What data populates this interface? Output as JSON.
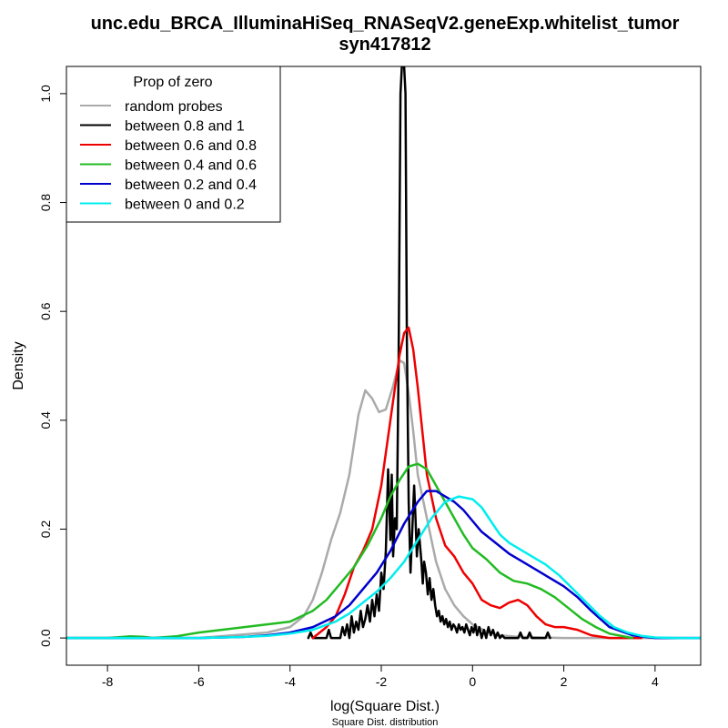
{
  "chart_data": {
    "type": "line",
    "title": "unc.edu_BRCA_IlluminaHiSeq_RNASeqV2.geneExp.whitelist_tumor",
    "subtitle": "syn417812",
    "xlabel": "log(Square Dist.)",
    "xsublabel": "Square Dist. distribution",
    "ylabel": "Density",
    "xlim": [
      -8.9,
      5.0
    ],
    "ylim": [
      -0.05,
      1.05
    ],
    "xticks": [
      -8,
      -6,
      -4,
      -2,
      0,
      2,
      4
    ],
    "xtick_labels": [
      "-8",
      "-6",
      "-4",
      "-2",
      "0",
      "2",
      "4"
    ],
    "yticks": [
      0.0,
      0.2,
      0.4,
      0.6,
      0.8,
      1.0
    ],
    "ytick_labels": [
      "0.0",
      "0.2",
      "0.4",
      "0.6",
      "0.8",
      "1.0"
    ],
    "grid": false,
    "legend": {
      "title": "Prop of zero",
      "placement": "top-left"
    },
    "series": [
      {
        "name": "random probes",
        "color": "#aaaaaa",
        "x": [
          -8.9,
          -6,
          -4.5,
          -4,
          -3.7,
          -3.5,
          -3.3,
          -3.1,
          -2.9,
          -2.7,
          -2.5,
          -2.35,
          -2.2,
          -2.05,
          -1.9,
          -1.75,
          -1.6,
          -1.5,
          -1.4,
          -1.3,
          -1.2,
          -1.0,
          -0.8,
          -0.6,
          -0.4,
          -0.2,
          0.0,
          0.3,
          0.6,
          1.0,
          2.0,
          5.0
        ],
        "y": [
          0.0,
          0.0,
          0.01,
          0.02,
          0.04,
          0.07,
          0.12,
          0.18,
          0.23,
          0.3,
          0.41,
          0.455,
          0.44,
          0.415,
          0.42,
          0.46,
          0.51,
          0.505,
          0.45,
          0.38,
          0.3,
          0.22,
          0.14,
          0.09,
          0.06,
          0.04,
          0.025,
          0.012,
          0.005,
          0.002,
          0.0,
          0.0
        ]
      },
      {
        "name": "between 0.8 and 1",
        "color": "#000000",
        "x": [
          -3.6,
          -3.55,
          -3.5,
          -3.45,
          -3.2,
          -3.15,
          -3.1,
          -3.05,
          -2.9,
          -2.85,
          -2.8,
          -2.75,
          -2.7,
          -2.65,
          -2.6,
          -2.55,
          -2.5,
          -2.45,
          -2.4,
          -2.35,
          -2.3,
          -2.25,
          -2.2,
          -2.15,
          -2.1,
          -2.05,
          -2.0,
          -1.95,
          -1.9,
          -1.85,
          -1.8,
          -1.77,
          -1.74,
          -1.7,
          -1.66,
          -1.62,
          -1.58,
          -1.55,
          -1.5,
          -1.47,
          -1.44,
          -1.4,
          -1.36,
          -1.32,
          -1.28,
          -1.25,
          -1.22,
          -1.18,
          -1.15,
          -1.12,
          -1.09,
          -1.06,
          -1.02,
          -0.98,
          -0.94,
          -0.9,
          -0.86,
          -0.82,
          -0.78,
          -0.74,
          -0.7,
          -0.66,
          -0.62,
          -0.58,
          -0.54,
          -0.5,
          -0.46,
          -0.42,
          -0.38,
          -0.34,
          -0.3,
          -0.26,
          -0.22,
          -0.18,
          -0.14,
          -0.1,
          -0.06,
          -0.02,
          0.02,
          0.06,
          0.1,
          0.15,
          0.2,
          0.25,
          0.3,
          0.35,
          0.4,
          0.45,
          0.5,
          0.55,
          0.6,
          0.65,
          0.7,
          0.8,
          0.9,
          1.0,
          1.05,
          1.1,
          1.2,
          1.25,
          1.3,
          1.35,
          1.5,
          1.6,
          1.65,
          1.7
        ],
        "y": [
          0.0,
          0.01,
          0.0,
          0.0,
          0.0,
          0.015,
          0.0,
          0.0,
          0.0,
          0.02,
          0.005,
          0.025,
          0.0,
          0.04,
          0.01,
          0.03,
          0.015,
          0.05,
          0.02,
          0.035,
          0.06,
          0.03,
          0.07,
          0.04,
          0.08,
          0.05,
          0.12,
          0.09,
          0.16,
          0.31,
          0.18,
          0.3,
          0.15,
          0.22,
          0.2,
          0.5,
          1.0,
          1.05,
          1.05,
          1.0,
          0.55,
          0.25,
          0.12,
          0.2,
          0.28,
          0.22,
          0.15,
          0.2,
          0.17,
          0.14,
          0.1,
          0.14,
          0.12,
          0.08,
          0.11,
          0.07,
          0.09,
          0.06,
          0.04,
          0.05,
          0.03,
          0.04,
          0.025,
          0.035,
          0.02,
          0.03,
          0.015,
          0.025,
          0.02,
          0.01,
          0.025,
          0.015,
          0.02,
          0.01,
          0.025,
          0.015,
          0.005,
          0.02,
          0.01,
          0.025,
          0.005,
          0.02,
          0.0,
          0.015,
          0.0,
          0.02,
          0.005,
          0.015,
          0.0,
          0.01,
          0.0,
          0.005,
          0.0,
          0.0,
          0.0,
          0.0,
          0.01,
          0.0,
          0.0,
          0.01,
          0.0,
          0.0,
          0.0,
          0.0,
          0.01,
          0.0
        ]
      },
      {
        "name": "between 0.6 and 0.8",
        "color": "#ee0000",
        "x": [
          -3.5,
          -3.2,
          -3.0,
          -2.8,
          -2.6,
          -2.4,
          -2.2,
          -2.0,
          -1.8,
          -1.6,
          -1.5,
          -1.4,
          -1.3,
          -1.2,
          -1.1,
          -1.0,
          -0.8,
          -0.6,
          -0.4,
          -0.2,
          0.0,
          0.2,
          0.4,
          0.6,
          0.8,
          1.0,
          1.2,
          1.4,
          1.6,
          1.8,
          2.0,
          2.3,
          2.6,
          3.0,
          3.7
        ],
        "y": [
          0.0,
          0.02,
          0.04,
          0.08,
          0.13,
          0.16,
          0.2,
          0.28,
          0.4,
          0.52,
          0.56,
          0.57,
          0.53,
          0.46,
          0.38,
          0.3,
          0.22,
          0.17,
          0.15,
          0.12,
          0.1,
          0.07,
          0.06,
          0.055,
          0.065,
          0.07,
          0.06,
          0.04,
          0.025,
          0.02,
          0.02,
          0.015,
          0.005,
          0.0,
          0.0
        ]
      },
      {
        "name": "between 0.4 and 0.6",
        "color": "#22bb22",
        "x": [
          -8.9,
          -8.0,
          -7.5,
          -7.2,
          -7.0,
          -6.5,
          -6.0,
          -5.5,
          -5.0,
          -4.5,
          -4.0,
          -3.5,
          -3.2,
          -2.9,
          -2.6,
          -2.3,
          -2.0,
          -1.8,
          -1.6,
          -1.4,
          -1.2,
          -1.0,
          -0.8,
          -0.6,
          -0.4,
          -0.2,
          0.0,
          0.3,
          0.6,
          0.9,
          1.2,
          1.5,
          1.8,
          2.1,
          2.4,
          2.7,
          3.0,
          3.5
        ],
        "y": [
          0.0,
          0.0,
          0.003,
          0.002,
          0.0,
          0.003,
          0.01,
          0.015,
          0.02,
          0.025,
          0.03,
          0.05,
          0.07,
          0.1,
          0.13,
          0.17,
          0.22,
          0.26,
          0.29,
          0.315,
          0.32,
          0.31,
          0.28,
          0.25,
          0.22,
          0.19,
          0.165,
          0.145,
          0.12,
          0.105,
          0.1,
          0.09,
          0.075,
          0.055,
          0.035,
          0.02,
          0.008,
          0.0
        ]
      },
      {
        "name": "between 0.2 and 0.4",
        "color": "#0000cc",
        "x": [
          -8.9,
          -6.0,
          -5.0,
          -4.5,
          -4.0,
          -3.5,
          -3.0,
          -2.7,
          -2.4,
          -2.1,
          -1.8,
          -1.5,
          -1.2,
          -1.0,
          -0.8,
          -0.6,
          -0.4,
          -0.2,
          0.0,
          0.2,
          0.5,
          0.8,
          1.1,
          1.4,
          1.7,
          2.0,
          2.3,
          2.6,
          3.0,
          3.5,
          4.0,
          4.5,
          5.0
        ],
        "y": [
          0.0,
          0.0,
          0.002,
          0.005,
          0.01,
          0.02,
          0.04,
          0.06,
          0.09,
          0.12,
          0.16,
          0.21,
          0.25,
          0.27,
          0.27,
          0.26,
          0.25,
          0.235,
          0.215,
          0.195,
          0.175,
          0.155,
          0.14,
          0.125,
          0.11,
          0.095,
          0.075,
          0.05,
          0.02,
          0.005,
          0.0,
          0.0,
          0.0
        ]
      },
      {
        "name": "between 0 and 0.2",
        "color": "#00eeee",
        "x": [
          -8.9,
          -6.0,
          -5.0,
          -4.5,
          -4.0,
          -3.5,
          -3.0,
          -2.7,
          -2.4,
          -2.1,
          -1.8,
          -1.5,
          -1.2,
          -0.9,
          -0.6,
          -0.3,
          0.0,
          0.2,
          0.4,
          0.6,
          0.8,
          1.0,
          1.3,
          1.6,
          1.9,
          2.2,
          2.5,
          2.8,
          3.1,
          3.4,
          3.7,
          4.0,
          4.5,
          5.0
        ],
        "y": [
          0.0,
          0.0,
          0.002,
          0.004,
          0.008,
          0.015,
          0.03,
          0.045,
          0.065,
          0.085,
          0.11,
          0.14,
          0.18,
          0.22,
          0.25,
          0.26,
          0.255,
          0.24,
          0.215,
          0.19,
          0.175,
          0.165,
          0.15,
          0.135,
          0.115,
          0.09,
          0.065,
          0.04,
          0.02,
          0.01,
          0.004,
          0.001,
          0.0,
          0.0
        ]
      }
    ]
  }
}
